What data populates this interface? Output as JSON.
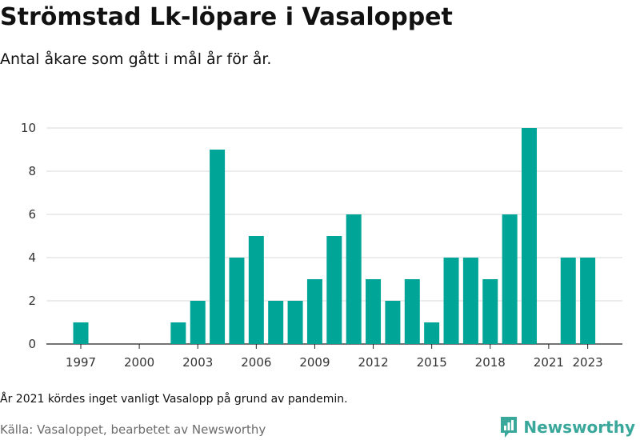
{
  "header": {
    "title": "Strömstad Lk-löpare i Vasaloppet",
    "subtitle": "Antal åkare som gått i mål år för år."
  },
  "footer": {
    "note": "År 2021 kördes inget vanligt Vasalopp på grund av pandemin.",
    "source": "Källa: Vasaloppet, bearbetet av Newsworthy",
    "brand": "Newsworthy",
    "brand_icon": "bar-chart-icon",
    "brand_color": "#3aa79b"
  },
  "chart_data": {
    "type": "bar",
    "title": "Strömstad Lk-löpare i Vasaloppet",
    "subtitle": "Antal åkare som gått i mål år för år.",
    "xlabel": "",
    "ylabel": "",
    "categories": [
      1997,
      1998,
      1999,
      2000,
      2001,
      2002,
      2003,
      2004,
      2005,
      2006,
      2007,
      2008,
      2009,
      2010,
      2011,
      2012,
      2013,
      2014,
      2015,
      2016,
      2017,
      2018,
      2019,
      2020,
      2021,
      2022,
      2023
    ],
    "values": [
      1,
      0,
      0,
      0,
      0,
      1,
      2,
      9,
      4,
      5,
      2,
      2,
      3,
      5,
      6,
      3,
      2,
      3,
      1,
      4,
      4,
      3,
      6,
      10,
      0,
      4,
      4
    ],
    "x_tick_labels": [
      1997,
      2000,
      2003,
      2006,
      2009,
      2012,
      2015,
      2018,
      2021,
      2023
    ],
    "y_ticks": [
      0,
      2,
      4,
      6,
      8,
      10
    ],
    "ylim": [
      0,
      10
    ],
    "grid": "horizontal",
    "legend": "none",
    "bar_color": "#00a598"
  }
}
